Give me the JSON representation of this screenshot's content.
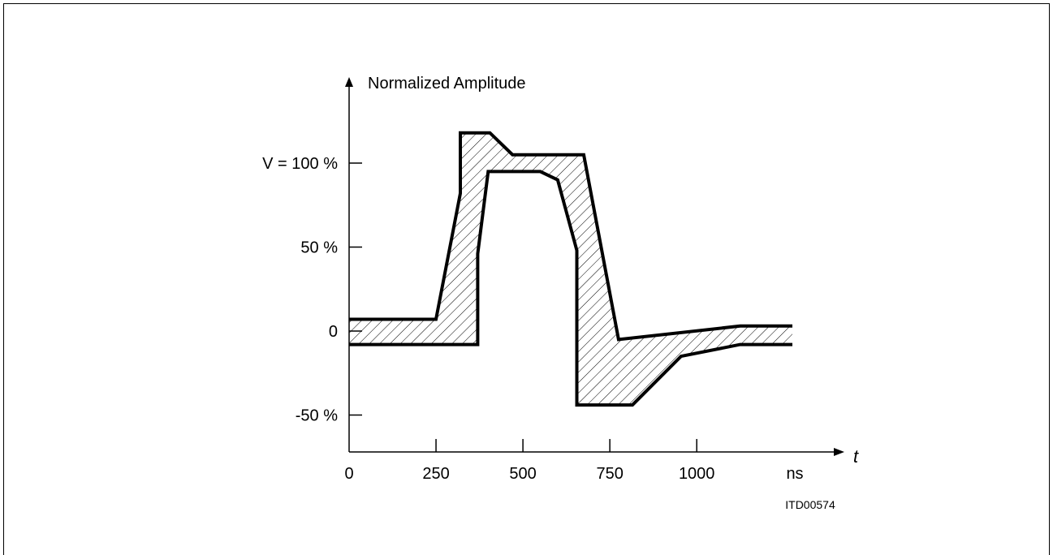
{
  "chart_data": {
    "type": "area",
    "title": "",
    "ylabel": "Normalized Amplitude",
    "xlabel": "t",
    "x_unit": "ns",
    "xlim": [
      0,
      1280
    ],
    "ylim": [
      -72,
      140
    ],
    "x_ticks": [
      0,
      250,
      500,
      750,
      1000
    ],
    "x_tick_labels": [
      "0",
      "250",
      "500",
      "750",
      "1000"
    ],
    "y_ticks": [
      -50,
      0,
      50,
      100
    ],
    "y_tick_labels": [
      "-50 %",
      "0",
      "50 %",
      "V = 100 %"
    ],
    "figure_id": "ITD00574",
    "series": [
      {
        "role": "upper-limit",
        "x": [
          0,
          250,
          320,
          320,
          405,
          470,
          675,
          775,
          1125,
          1275
        ],
        "y": [
          7,
          7,
          82,
          118,
          118,
          105,
          105,
          -5,
          3,
          3
        ]
      },
      {
        "role": "lower-limit",
        "x": [
          0,
          370,
          370,
          400,
          550,
          600,
          655,
          655,
          815,
          955,
          1125,
          1275
        ],
        "y": [
          -8,
          -8,
          46,
          95,
          95,
          90,
          48,
          -44,
          -44,
          -15,
          -8,
          -8
        ]
      }
    ],
    "fill": "hatched",
    "grid": false
  }
}
